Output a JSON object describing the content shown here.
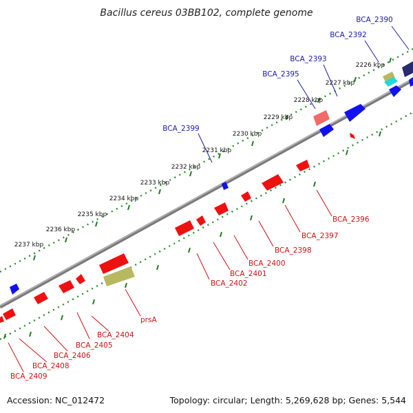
{
  "title": "Bacillus cereus 03BB102, complete genome",
  "footer": {
    "accession": "Accession: NC_012472",
    "summary": "Topology: circular; Length: 5,269,628 bp; Genes: 5,544"
  },
  "colors": {
    "forward_label": "#1a1aa6",
    "reverse_label": "#cc1111",
    "forward_gene": "#1111ee",
    "reverse_gene": "#ee1111",
    "rna_gene": "#b8b860",
    "tick": "#2a8a2a",
    "backbone": "#808080"
  },
  "kbp_ticks": [
    "2226 kbp",
    "2227 kbp",
    "2228 kbp",
    "2229 kbp",
    "2230 kbp",
    "2231 kbp",
    "2232 kbp",
    "2233 kbp",
    "2234 kbp",
    "2235 kbp",
    "2236 kbp",
    "2237 kbp"
  ],
  "forward_labels": [
    "BCA_2390",
    "BCA_2392",
    "BCA_2393",
    "BCA_2395",
    "BCA_2399"
  ],
  "reverse_labels": [
    "BCA_2396",
    "BCA_2397",
    "BCA_2398",
    "BCA_2400",
    "BCA_2401",
    "BCA_2402",
    "prsA",
    "BCA_2404",
    "BCA_2405",
    "BCA_2406",
    "BCA_2408",
    "BCA_2409"
  ]
}
